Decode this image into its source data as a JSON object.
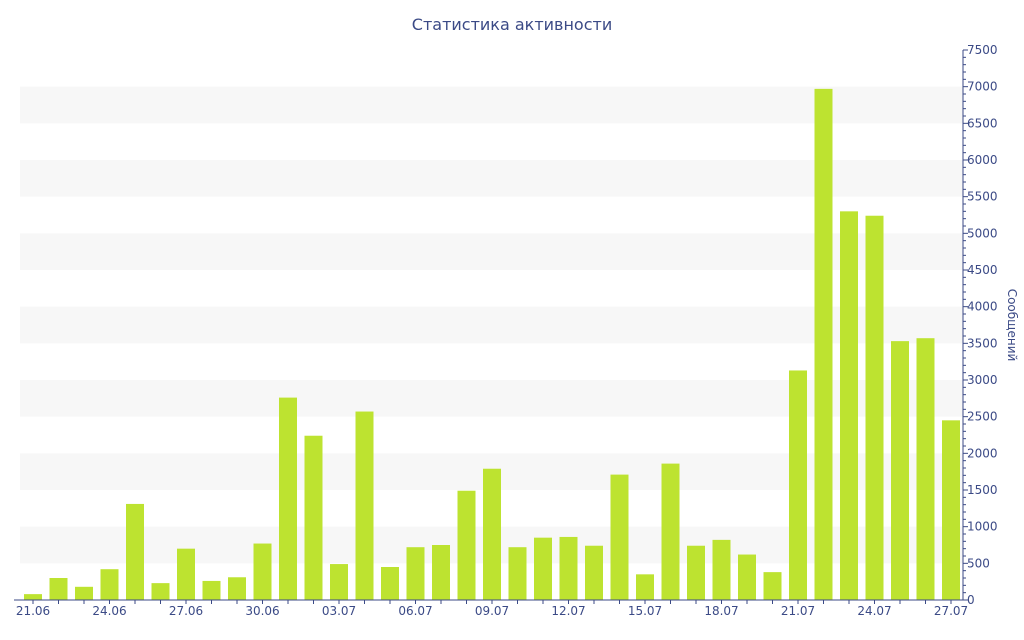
{
  "chart_data": {
    "type": "bar",
    "title": "Статистика активности",
    "xlabel": "",
    "ylabel": "Сообщений",
    "ylim": [
      0,
      7500
    ],
    "y_ticks": [
      0,
      500,
      1000,
      1500,
      2000,
      2500,
      3000,
      3500,
      4000,
      4500,
      5000,
      5500,
      6000,
      6500,
      7000,
      7500
    ],
    "y_axis_position": "right",
    "grid": "alternating horizontal bands",
    "legend": "none",
    "bar_color": "#bde330",
    "band_color": "#f7f7f7",
    "axis_color": "#3b4a86",
    "categories": [
      "21.06",
      "22.06",
      "23.06",
      "24.06",
      "25.06",
      "26.06",
      "27.06",
      "28.06",
      "29.06",
      "30.06",
      "01.07",
      "02.07",
      "03.07",
      "04.07",
      "05.07",
      "06.07",
      "07.07",
      "08.07",
      "09.07",
      "10.07",
      "11.07",
      "12.07",
      "13.07",
      "14.07",
      "15.07",
      "16.07",
      "17.07",
      "18.07",
      "19.07",
      "20.07",
      "21.07",
      "22.07",
      "23.07",
      "24.07",
      "25.07",
      "26.07",
      "27.07"
    ],
    "x_tick_labels": [
      "21.06",
      "24.06",
      "27.06",
      "30.06",
      "03.07",
      "06.07",
      "09.07",
      "12.07",
      "15.07",
      "18.07",
      "21.07",
      "24.07",
      "27.07"
    ],
    "values": [
      80,
      300,
      180,
      420,
      1310,
      230,
      700,
      260,
      310,
      770,
      2760,
      2240,
      490,
      2570,
      450,
      720,
      750,
      1490,
      1790,
      720,
      850,
      860,
      740,
      1710,
      350,
      1860,
      740,
      820,
      620,
      380,
      3130,
      6970,
      5300,
      5240,
      3530,
      3570,
      2450
    ]
  }
}
